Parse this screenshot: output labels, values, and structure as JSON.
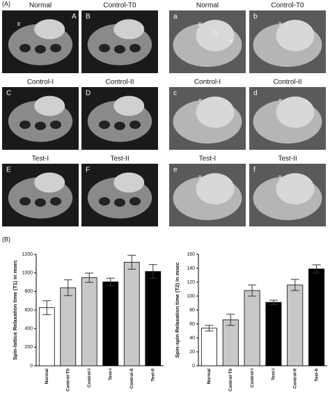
{
  "panel_a": {
    "label": "(A)",
    "images": [
      {
        "title": "Normal",
        "letter": "A",
        "annotations": [
          "E"
        ]
      },
      {
        "title": "Control-T0",
        "letter": "B",
        "annotations": []
      },
      {
        "title": "Control-I",
        "letter": "C",
        "annotations": []
      },
      {
        "title": "Control-II",
        "letter": "D",
        "annotations": []
      },
      {
        "title": "Test-I",
        "letter": "E",
        "annotations": []
      },
      {
        "title": "Test-II",
        "letter": "F",
        "annotations": []
      },
      {
        "title": "Normal",
        "letter": "a",
        "annotations": [
          "E",
          "D",
          "H"
        ]
      },
      {
        "title": "Control-T0",
        "letter": "b",
        "annotations": [
          "T"
        ]
      },
      {
        "title": "Control-I",
        "letter": "c",
        "annotations": [
          "T"
        ]
      },
      {
        "title": "Control-II",
        "letter": "d",
        "annotations": [
          "T"
        ]
      },
      {
        "title": "Test-I",
        "letter": "e",
        "annotations": [
          "T"
        ]
      },
      {
        "title": "Test-II",
        "letter": "f",
        "annotations": [
          "T"
        ]
      }
    ]
  },
  "panel_b": {
    "label": "(B)"
  },
  "chart_data": [
    {
      "type": "bar",
      "y_label": "Spin-lattice Relaxation time (T1) in msec",
      "categories": [
        "Normal",
        "Control-T0",
        "Control-I",
        "Test-I",
        "Control-II",
        "Test-II"
      ],
      "values": [
        625,
        840,
        948,
        903,
        1115,
        1015
      ],
      "errors": [
        75,
        85,
        50,
        40,
        75,
        75
      ],
      "colors": [
        "#ffffff",
        "#c8c8c8",
        "#c8c8c8",
        "#000000",
        "#c8c8c8",
        "#000000"
      ],
      "ylim": [
        0,
        1200
      ],
      "yticks": [
        0,
        200,
        400,
        600,
        800,
        1000,
        1200
      ]
    },
    {
      "type": "bar",
      "y_label": "Spin-spin Relaxation time (T2) in msec",
      "categories": [
        "Normal",
        "Control-T0",
        "Control-I",
        "Test-I",
        "Control-II",
        "Test-II"
      ],
      "values": [
        54,
        66,
        108,
        91,
        116,
        139
      ],
      "errors": [
        4,
        8,
        8,
        3,
        8,
        6
      ],
      "colors": [
        "#ffffff",
        "#c8c8c8",
        "#c8c8c8",
        "#000000",
        "#c8c8c8",
        "#000000"
      ],
      "ylim": [
        0,
        160
      ],
      "yticks": [
        0,
        20,
        40,
        60,
        80,
        100,
        120,
        140,
        160
      ]
    }
  ]
}
